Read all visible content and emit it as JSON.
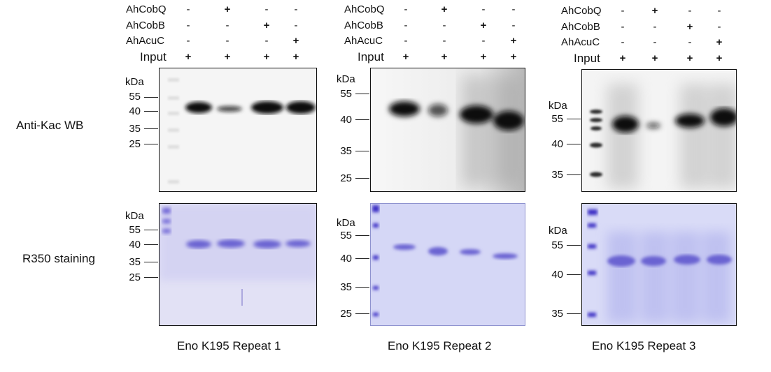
{
  "conditions": {
    "rows": [
      {
        "label": "AhCobQ",
        "marks": [
          "-",
          "+",
          "-",
          "-"
        ]
      },
      {
        "label": "AhCobB",
        "marks": [
          "-",
          "-",
          "+",
          "-"
        ]
      },
      {
        "label": "AhAcuC",
        "marks": [
          "-",
          "-",
          "-",
          "+"
        ]
      },
      {
        "label": "Input",
        "marks": [
          "+",
          "+",
          "+",
          "+"
        ]
      }
    ]
  },
  "row_labels": {
    "western_blot": "Anti-Kac WB",
    "staining": "R350 staining"
  },
  "unit": "kDa",
  "repeats": [
    {
      "caption": "Eno K195 Repeat 1",
      "wb_markers": [
        "55",
        "40",
        "35",
        "25"
      ],
      "stain_markers": [
        "55",
        "40",
        "35",
        "25"
      ]
    },
    {
      "caption": "Eno K195 Repeat 2",
      "wb_markers": [
        "55",
        "40",
        "35",
        "25"
      ],
      "stain_markers": [
        "55",
        "40",
        "35",
        "25"
      ]
    },
    {
      "caption": "Eno K195 Repeat 3",
      "wb_markers": [
        "55",
        "40",
        "35"
      ],
      "stain_markers": [
        "55",
        "40",
        "35"
      ]
    }
  ],
  "colors": {
    "wb_background": "#f4f4f4",
    "wb_band": "#0c0c0c",
    "stain_background": "#d6d8f6",
    "stain_band": "#6b63d2",
    "ladder": "#3a2fc4"
  }
}
